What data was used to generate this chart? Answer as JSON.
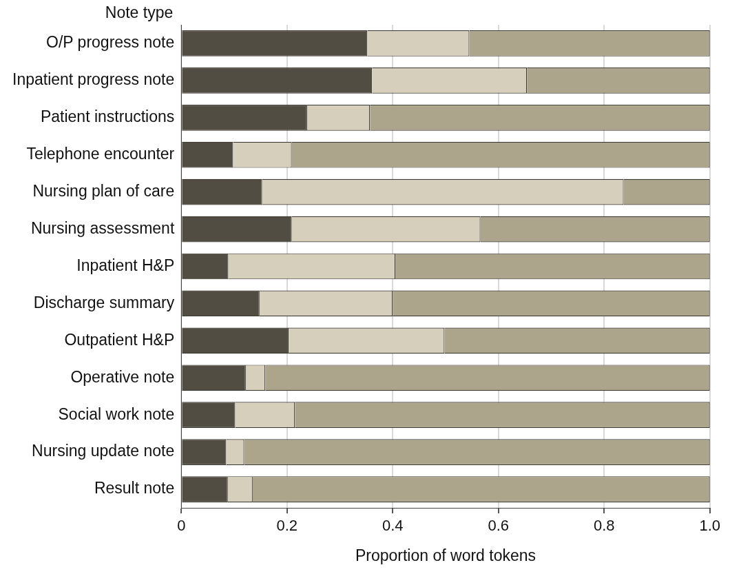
{
  "chart_data": {
    "type": "bar",
    "orientation": "horizontal",
    "stacked": true,
    "xlabel": "Proportion of word tokens",
    "ylabel": "Note type",
    "categories": [
      "O/P progress note",
      "Inpatient progress note",
      "Patient instructions",
      "Telephone encounter",
      "Nursing plan of care",
      "Nursing assessment",
      "Inpatient H&P",
      "Discharge summary",
      "Outpatient H&P",
      "Operative note",
      "Social work note",
      "Nursing update note",
      "Result note"
    ],
    "series": [
      {
        "color": "#524d42",
        "values": [
          0.352,
          0.361,
          0.238,
          0.098,
          0.153,
          0.209,
          0.089,
          0.148,
          0.203,
          0.122,
          0.102,
          0.085,
          0.088
        ]
      },
      {
        "color": "#d6cfbc",
        "values": [
          0.193,
          0.293,
          0.119,
          0.111,
          0.684,
          0.357,
          0.316,
          0.252,
          0.295,
          0.037,
          0.113,
          0.034,
          0.047
        ]
      },
      {
        "color": "#ada58b",
        "values": [
          0.455,
          0.346,
          0.643,
          0.791,
          0.163,
          0.434,
          0.595,
          0.6,
          0.502,
          0.841,
          0.785,
          0.881,
          0.865
        ]
      }
    ],
    "xlim": [
      0,
      1
    ],
    "xticks": [
      0,
      0.2,
      0.4,
      0.6,
      0.8,
      {
        "value": 1,
        "label": "1.0"
      }
    ],
    "grid": "x",
    "legend": false
  }
}
